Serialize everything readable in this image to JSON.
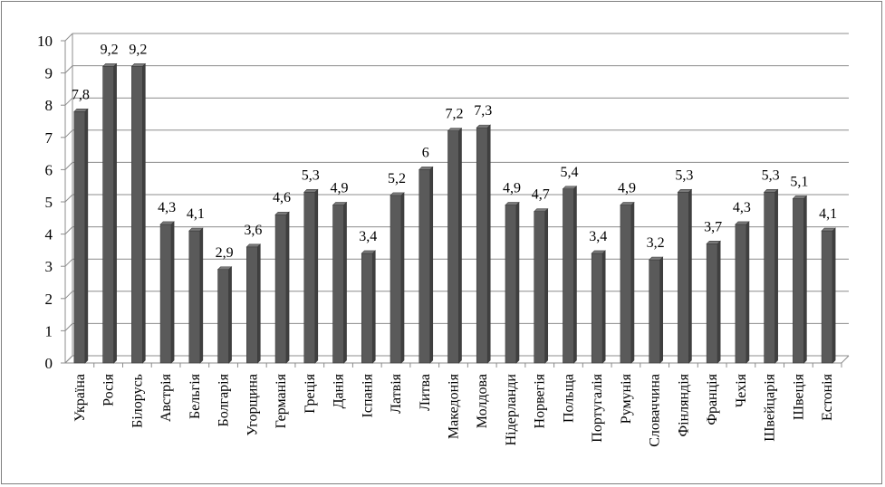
{
  "chart_data": {
    "type": "bar",
    "title": "",
    "xlabel": "",
    "ylabel": "",
    "ylim": [
      0,
      10
    ],
    "yticks": [
      0,
      1,
      2,
      3,
      4,
      5,
      6,
      7,
      8,
      9,
      10
    ],
    "grid": true,
    "legend": "none",
    "bar_color": "#555555",
    "categories": [
      "Україна",
      "Росія",
      "Білорусь",
      "Австрія",
      "Бельгія",
      "Болгарія",
      "Угорщина",
      "Германія",
      "Греція",
      "Данія",
      "Іспанія",
      "Латвія",
      "Литва",
      "Македонія",
      "Молдова",
      "Нідерланди",
      "Норвегія",
      "Польща",
      "Португалія",
      "Румунія",
      "Словаччина",
      "Фінляндія",
      "Франція",
      "Чехія",
      "Швейцарія",
      "Швеція",
      "Естонія"
    ],
    "values": [
      7.8,
      9.2,
      9.2,
      4.3,
      4.1,
      2.9,
      3.6,
      4.6,
      5.3,
      4.9,
      3.4,
      5.2,
      6,
      7.2,
      7.3,
      4.9,
      4.7,
      5.4,
      3.4,
      4.9,
      3.2,
      5.3,
      3.7,
      4.3,
      5.3,
      5.1,
      4.1
    ],
    "data_labels": [
      "7,8",
      "9,2",
      "9,2",
      "4,3",
      "4,1",
      "2,9",
      "3,6",
      "4,6",
      "5,3",
      "4,9",
      "3,4",
      "5,2",
      "6",
      "7,2",
      "7,3",
      "4,9",
      "4,7",
      "5,4",
      "3,4",
      "4,9",
      "3,2",
      "5,3",
      "3,7",
      "4,3",
      "5,3",
      "5,1",
      "4,1"
    ]
  }
}
